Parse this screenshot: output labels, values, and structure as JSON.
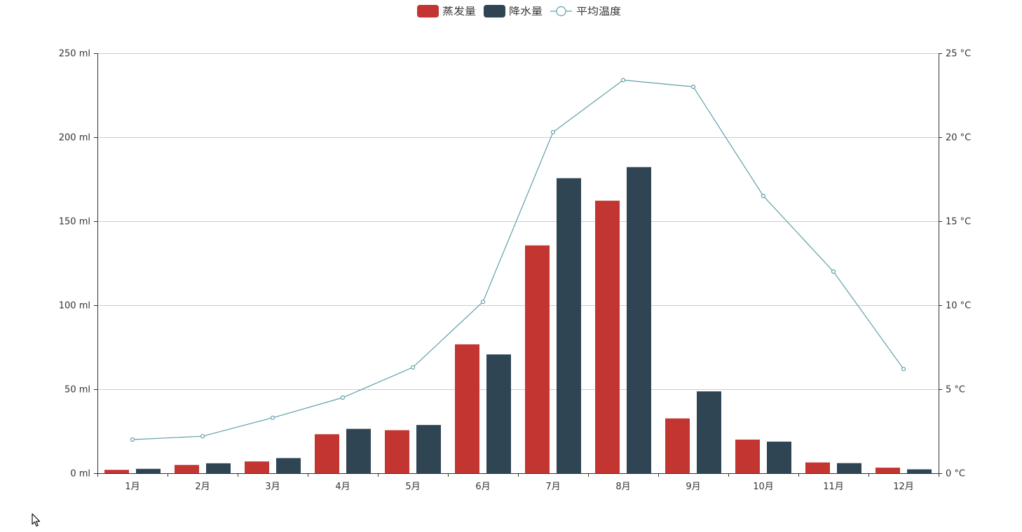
{
  "chart_data": {
    "type": "bar",
    "categories": [
      "1月",
      "2月",
      "3月",
      "4月",
      "5月",
      "6月",
      "7月",
      "8月",
      "9月",
      "10月",
      "11月",
      "12月"
    ],
    "series": [
      {
        "name": "蒸发量",
        "type": "bar",
        "color": "#c23531",
        "yAxis": "left",
        "values": [
          2.0,
          4.9,
          7.0,
          23.2,
          25.6,
          76.7,
          135.6,
          162.2,
          32.6,
          20.0,
          6.4,
          3.3
        ]
      },
      {
        "name": "降水量",
        "type": "bar",
        "color": "#2f4554",
        "yAxis": "left",
        "values": [
          2.6,
          5.9,
          9.0,
          26.4,
          28.7,
          70.7,
          175.6,
          182.2,
          48.7,
          18.8,
          6.0,
          2.3
        ]
      },
      {
        "name": "平均温度",
        "type": "line",
        "color": "#61a0a8",
        "yAxis": "right",
        "values": [
          2.0,
          2.2,
          3.3,
          4.5,
          6.3,
          10.2,
          20.3,
          23.4,
          23.0,
          16.5,
          12.0,
          6.2
        ]
      }
    ],
    "yAxisLeft": {
      "unit": "ml",
      "min": 0,
      "max": 250,
      "ticks": [
        0,
        50,
        100,
        150,
        200,
        250
      ]
    },
    "yAxisRight": {
      "unit": "°C",
      "min": 0,
      "max": 25,
      "ticks": [
        0,
        5,
        10,
        15,
        20,
        25
      ]
    },
    "grid": true,
    "legend_position": "top-center",
    "title": "",
    "xlabel": "",
    "ylabel": ""
  },
  "colors": {
    "axis": "#333333",
    "gridline": "#cccccc"
  }
}
